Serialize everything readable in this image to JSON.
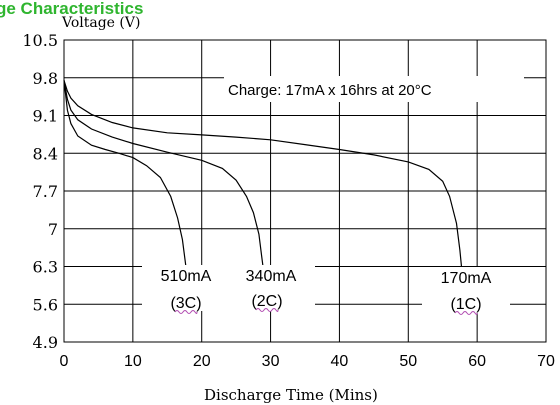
{
  "chart_data": {
    "type": "line",
    "title_fragment": "ge Characteristics",
    "ylabel": "Voltage (V)",
    "xlabel": "Discharge Time (Mins)",
    "annotation": "Charge: 17mA x 16hrs at 20°C",
    "xlim": [
      0,
      70
    ],
    "ylim": [
      4.9,
      10.5
    ],
    "x_ticks": [
      "0",
      "10",
      "20",
      "30",
      "40",
      "50",
      "60",
      "70"
    ],
    "y_ticks": [
      "10.5",
      "9.8",
      "9.1",
      "8.4",
      "7.7",
      "7",
      "6.3",
      "5.6",
      "4.9"
    ],
    "grid": true,
    "series": [
      {
        "name": "170mA",
        "c_rate": "(1C)",
        "points": [
          [
            0,
            9.75
          ],
          [
            0.5,
            9.55
          ],
          [
            1,
            9.42
          ],
          [
            2,
            9.28
          ],
          [
            4,
            9.12
          ],
          [
            7,
            8.97
          ],
          [
            10,
            8.87
          ],
          [
            15,
            8.78
          ],
          [
            20,
            8.74
          ],
          [
            25,
            8.7
          ],
          [
            30,
            8.65
          ],
          [
            35,
            8.56
          ],
          [
            40,
            8.47
          ],
          [
            45,
            8.37
          ],
          [
            50,
            8.24
          ],
          [
            53,
            8.1
          ],
          [
            55,
            7.88
          ],
          [
            56,
            7.6
          ],
          [
            57,
            7.1
          ],
          [
            57.5,
            6.6
          ],
          [
            57.8,
            6.2
          ]
        ]
      },
      {
        "name": "340mA",
        "c_rate": "(2C)",
        "points": [
          [
            0,
            9.75
          ],
          [
            0.5,
            9.4
          ],
          [
            1,
            9.2
          ],
          [
            2,
            9.02
          ],
          [
            4,
            8.85
          ],
          [
            7,
            8.7
          ],
          [
            10,
            8.58
          ],
          [
            15,
            8.42
          ],
          [
            20,
            8.27
          ],
          [
            23,
            8.12
          ],
          [
            25,
            7.9
          ],
          [
            26.5,
            7.6
          ],
          [
            27.5,
            7.3
          ],
          [
            28.3,
            6.9
          ],
          [
            28.7,
            6.5
          ],
          [
            29,
            6.2
          ]
        ]
      },
      {
        "name": "510mA",
        "c_rate": "(3C)",
        "points": [
          [
            0,
            9.75
          ],
          [
            0.5,
            9.2
          ],
          [
            1,
            8.95
          ],
          [
            2,
            8.72
          ],
          [
            4,
            8.55
          ],
          [
            6,
            8.47
          ],
          [
            8,
            8.4
          ],
          [
            10,
            8.32
          ],
          [
            12,
            8.17
          ],
          [
            14,
            7.95
          ],
          [
            15.5,
            7.6
          ],
          [
            16.5,
            7.2
          ],
          [
            17.2,
            6.8
          ],
          [
            17.8,
            6.2
          ]
        ]
      }
    ]
  }
}
